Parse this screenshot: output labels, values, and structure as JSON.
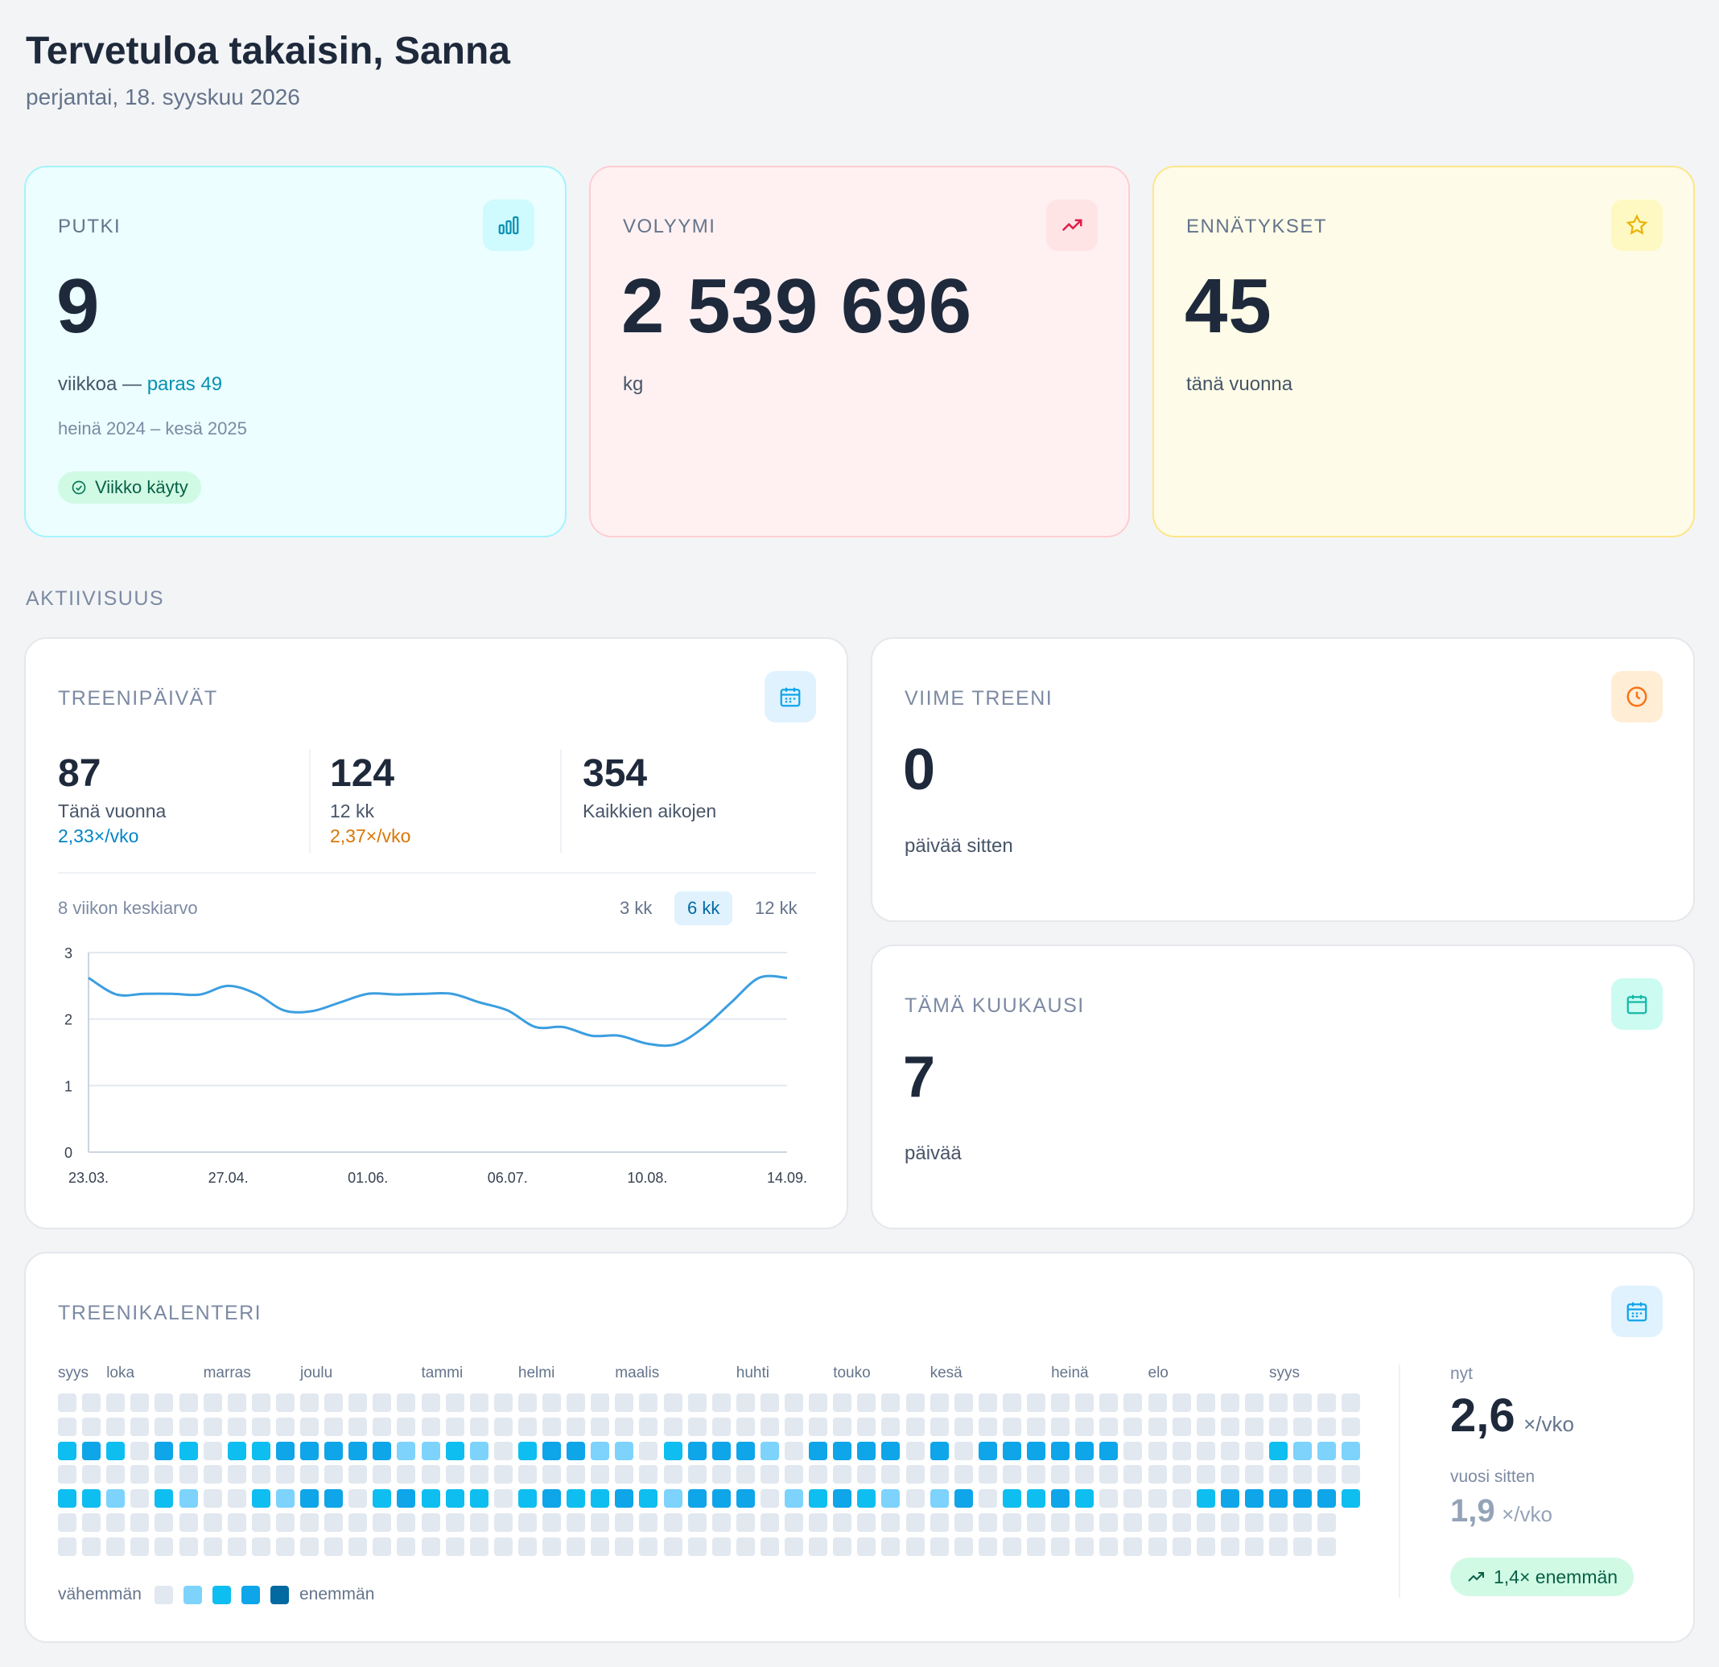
{
  "header": {
    "title": "Tervetuloa takaisin, Sanna",
    "date": "perjantai, 18. syyskuu 2026"
  },
  "stats": {
    "streak": {
      "label": "PUTKI",
      "value": "9",
      "unit": "viikkoa —",
      "best": "paras 49",
      "range": "heinä 2024 – kesä 2025",
      "badge": "Viikko käyty",
      "icon": "bar-chart-icon",
      "accent": "#0891b2"
    },
    "volume": {
      "label": "VOLYYMI",
      "value": "2 539 696",
      "unit": "kg",
      "icon": "trending-up-icon",
      "accent": "#e11d48"
    },
    "records": {
      "label": "ENNÄTYKSET",
      "value": "45",
      "unit": "tänä vuonna",
      "icon": "star-icon",
      "accent": "#eab308"
    }
  },
  "activity": {
    "section_label": "AKTIIVISUUS",
    "training_days": {
      "label": "TREENIPÄIVÄT",
      "icon": "calendar-icon",
      "year": {
        "value": "87",
        "label": "Tänä vuonna",
        "rate": "2,33×/vko"
      },
      "months12": {
        "value": "124",
        "label": "12 kk",
        "rate": "2,37×/vko"
      },
      "all": {
        "value": "354",
        "label": "Kaikkien aikojen"
      },
      "chart_caption": "8 viikon keskiarvo",
      "tabs": [
        "3 kk",
        "6 kk",
        "12 kk"
      ],
      "active_tab": "6 kk"
    },
    "last_workout": {
      "label": "VIIME TREENI",
      "value": "0",
      "unit": "päivää sitten",
      "icon": "clock-icon"
    },
    "this_month": {
      "label": "TÄMÄ KUUKAUSI",
      "value": "7",
      "unit": "päivää",
      "icon": "calendar-icon"
    }
  },
  "chart_data": {
    "type": "line",
    "title": "8 viikon keskiarvo",
    "xlabel": "",
    "ylabel": "",
    "ylim": [
      0,
      3
    ],
    "yticks": [
      "0",
      "1",
      "2",
      "3"
    ],
    "xticks": [
      "23.03.",
      "27.04.",
      "01.06.",
      "06.07.",
      "10.08.",
      "14.09."
    ],
    "grid": true,
    "series": [
      {
        "color": "#3b9ee0",
        "x_weeks": [
          0,
          1,
          2,
          3,
          4,
          5,
          6,
          7,
          8,
          9,
          10,
          11,
          12,
          13,
          14,
          15,
          16,
          17,
          18,
          19,
          20,
          21,
          22,
          23,
          24,
          25
        ],
        "values": [
          2.62,
          2.37,
          2.38,
          2.38,
          2.37,
          2.5,
          2.38,
          2.13,
          2.12,
          2.25,
          2.38,
          2.37,
          2.38,
          2.38,
          2.25,
          2.13,
          1.88,
          1.88,
          1.75,
          1.75,
          1.63,
          1.62,
          1.87,
          2.25,
          2.62,
          2.62
        ]
      }
    ]
  },
  "calendar": {
    "label": "TREENIKALENTERI",
    "icon": "calendar-icon",
    "months": [
      {
        "name": "syys",
        "col": 0
      },
      {
        "name": "loka",
        "col": 2
      },
      {
        "name": "marras",
        "col": 6
      },
      {
        "name": "joulu",
        "col": 10
      },
      {
        "name": "tammi",
        "col": 15
      },
      {
        "name": "helmi",
        "col": 19
      },
      {
        "name": "maalis",
        "col": 23
      },
      {
        "name": "huhti",
        "col": 28
      },
      {
        "name": "touko",
        "col": 32
      },
      {
        "name": "kesä",
        "col": 36
      },
      {
        "name": "heinä",
        "col": 41
      },
      {
        "name": "elo",
        "col": 45
      },
      {
        "name": "syys",
        "col": 50
      }
    ],
    "weeks": [
      "0020200",
      "0030200",
      "0020100",
      "0000000",
      "0030200",
      "0020100",
      "0000000",
      "0020000",
      "0020200",
      "0030100",
      "0030300",
      "0030300",
      "0030000",
      "0030200",
      "0010300",
      "0010200",
      "0020200",
      "0010200",
      "0000000",
      "0020200",
      "0030300",
      "0030200",
      "0010200",
      "0010300",
      "0000200",
      "0020100",
      "0030300",
      "0030300",
      "0030300",
      "0010000",
      "0000100",
      "0030200",
      "0030300",
      "0030200",
      "0030100",
      "0000000",
      "0030100",
      "0000300",
      "0030000",
      "0030200",
      "0030200",
      "0030300",
      "0030200",
      "0030000",
      "0000000",
      "0000000",
      "0000000",
      "0000200",
      "0000300",
      "0000300",
      "0020300",
      "0010300",
      "0010300",
      "0010200"
    ],
    "legend_less": "vähemmän",
    "legend_more": "enemmän",
    "levels": [
      "#e2e8f0",
      "#7dd3fc",
      "#0ebef0",
      "#0ea5e9",
      "#0369a1"
    ],
    "now_label": "nyt",
    "now_value": "2,6",
    "now_unit": "×/vko",
    "prev_label": "vuosi sitten",
    "prev_value": "1,9",
    "prev_unit": "×/vko",
    "change": "1,4× enemmän"
  }
}
